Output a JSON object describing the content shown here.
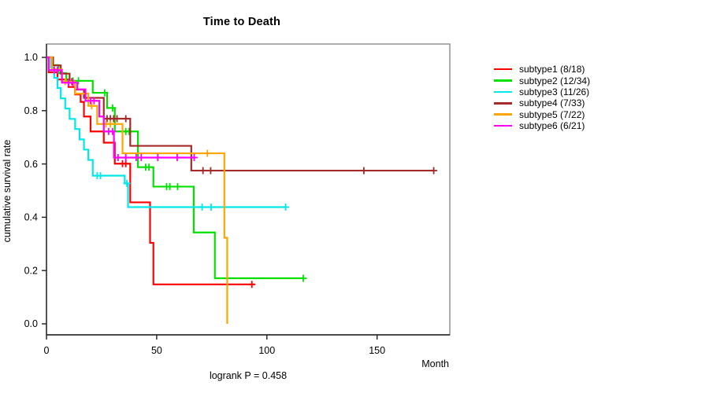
{
  "figure": {
    "title": "Time to Death",
    "x_axis": {
      "label": "Month",
      "ticks": [
        0,
        50,
        100,
        150
      ]
    },
    "y_axis": {
      "label": "cumulative survival rate",
      "ticks": [
        1.0,
        0.8,
        0.6,
        0.4,
        0.2,
        0.0
      ]
    },
    "footer": "logrank P = 0.458"
  },
  "chart_data": {
    "type": "line",
    "subtype": "kaplan-meier-step-survival",
    "title": "Time to Death",
    "xlabel": "Month",
    "ylabel": "cumulative survival rate",
    "xlim": [
      0,
      183
    ],
    "ylim": [
      0.0,
      1.0
    ],
    "grid": false,
    "legend_position": "right-outside",
    "annotation": "logrank P = 0.458",
    "series": [
      {
        "name": "subtype1",
        "label": "subtype1 (8/18)",
        "color": "#FF0000",
        "events": 8,
        "n": 18,
        "steps": [
          [
            0,
            1.0
          ],
          [
            1,
            0.944
          ],
          [
            5,
            0.917
          ],
          [
            10,
            0.889
          ],
          [
            13,
            0.861
          ],
          [
            15.5,
            0.833
          ],
          [
            17,
            0.778
          ],
          [
            20,
            0.722
          ],
          [
            26,
            0.68
          ],
          [
            31,
            0.601
          ],
          [
            38,
            0.456
          ],
          [
            47,
            0.304
          ],
          [
            48.5,
            0.148
          ]
        ],
        "censors": [
          34.5,
          36,
          93.2
        ],
        "end_month": 94.4
      },
      {
        "name": "subtype2",
        "label": "subtype2 (12/34)",
        "color": "#00E100",
        "events": 12,
        "n": 34,
        "steps": [
          [
            0,
            1.0
          ],
          [
            3,
            0.971
          ],
          [
            5.5,
            0.941
          ],
          [
            9,
            0.912
          ],
          [
            21,
            0.867
          ],
          [
            27.5,
            0.81
          ],
          [
            31,
            0.722
          ],
          [
            41.5,
            0.588
          ],
          [
            48.5,
            0.515
          ],
          [
            66.8,
            0.343
          ],
          [
            76.4,
            0.171
          ]
        ],
        "censors": [
          12,
          14.5,
          26.4,
          30,
          36,
          37.5,
          45,
          46.5,
          54.5,
          56,
          59.5,
          116.5
        ],
        "end_month": 116.5
      },
      {
        "name": "subtype3",
        "label": "subtype3 (11/26)",
        "color": "#00E8E8",
        "events": 11,
        "n": 26,
        "steps": [
          [
            0,
            1.0
          ],
          [
            2,
            0.962
          ],
          [
            3.5,
            0.923
          ],
          [
            5,
            0.885
          ],
          [
            6.5,
            0.846
          ],
          [
            8.5,
            0.808
          ],
          [
            10.5,
            0.769
          ],
          [
            13,
            0.731
          ],
          [
            15,
            0.692
          ],
          [
            17,
            0.654
          ],
          [
            19,
            0.615
          ],
          [
            21,
            0.556
          ],
          [
            35.5,
            0.527
          ],
          [
            37,
            0.438
          ]
        ],
        "censors": [
          23,
          24.5,
          36.5,
          70.6,
          74.7,
          108.5
        ],
        "end_month": 108.6
      },
      {
        "name": "subtype4",
        "label": "subtype4 (7/33)",
        "color": "#A52A2A",
        "events": 7,
        "n": 33,
        "steps": [
          [
            0,
            1.0
          ],
          [
            3,
            0.97
          ],
          [
            6.5,
            0.939
          ],
          [
            10.5,
            0.909
          ],
          [
            13,
            0.879
          ],
          [
            17,
            0.848
          ],
          [
            26,
            0.77
          ],
          [
            38,
            0.668
          ],
          [
            65.7,
            0.575
          ]
        ],
        "censors": [
          11.5,
          27.5,
          29,
          30.5,
          32,
          36,
          71,
          74.5,
          144,
          175.7
        ],
        "end_month": 176
      },
      {
        "name": "subtype5",
        "label": "subtype5 (7/22)",
        "color": "#FFA500",
        "events": 7,
        "n": 22,
        "steps": [
          [
            0,
            1.0
          ],
          [
            2.5,
            0.955
          ],
          [
            7,
            0.909
          ],
          [
            13,
            0.864
          ],
          [
            19,
            0.818
          ],
          [
            23,
            0.75
          ],
          [
            34.5,
            0.64
          ],
          [
            80.7,
            0.323
          ],
          [
            82,
            0.0
          ]
        ],
        "censors": [
          8.5,
          20.5,
          27,
          29,
          73
        ],
        "end_month": 82
      },
      {
        "name": "subtype6",
        "label": "subtype6 (6/21)",
        "color": "#FF00FF",
        "events": 6,
        "n": 21,
        "steps": [
          [
            0,
            1.0
          ],
          [
            1,
            0.952
          ],
          [
            7,
            0.905
          ],
          [
            14,
            0.88
          ],
          [
            17.7,
            0.837
          ],
          [
            24,
            0.778
          ],
          [
            26,
            0.722
          ],
          [
            30.6,
            0.624
          ]
        ],
        "censors": [
          3.5,
          5,
          10,
          12,
          20,
          21.6,
          28.2,
          30,
          32.5,
          36,
          40.7,
          43,
          50.5,
          59.3,
          67
        ],
        "end_month": 67.5
      }
    ]
  },
  "style": {
    "box_color": "#8a8a8a",
    "axis_color": "#1f1f1f",
    "background": "#ffffff"
  }
}
